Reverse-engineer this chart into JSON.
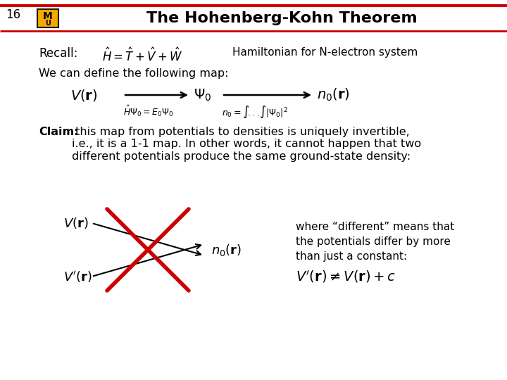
{
  "title": "The Hohenberg-Kohn Theorem",
  "slide_number": "16",
  "bg_color": "#ffffff",
  "font_color": "#000000",
  "red_line_color": "#cc0000",
  "recall_label": "Recall:",
  "hamiltonian_text": "Hamiltonian for N-electron system",
  "map_intro": "We can define the following map:",
  "claim_bold": "Claim:",
  "claim_text": " this map from potentials to densities is uniquely invertible,\ni.e., it is a 1-1 map. In other words, it cannot happen that two\ndifferent potentials produce the same ground-state density:",
  "where_text": "where “different” means that\nthe potentials differ by more\nthan just a constant:",
  "arrow_color": "#000000",
  "cross_color": "#cc0000",
  "logo_gold": "#f5a800",
  "logo_dark": "#1a1a00"
}
